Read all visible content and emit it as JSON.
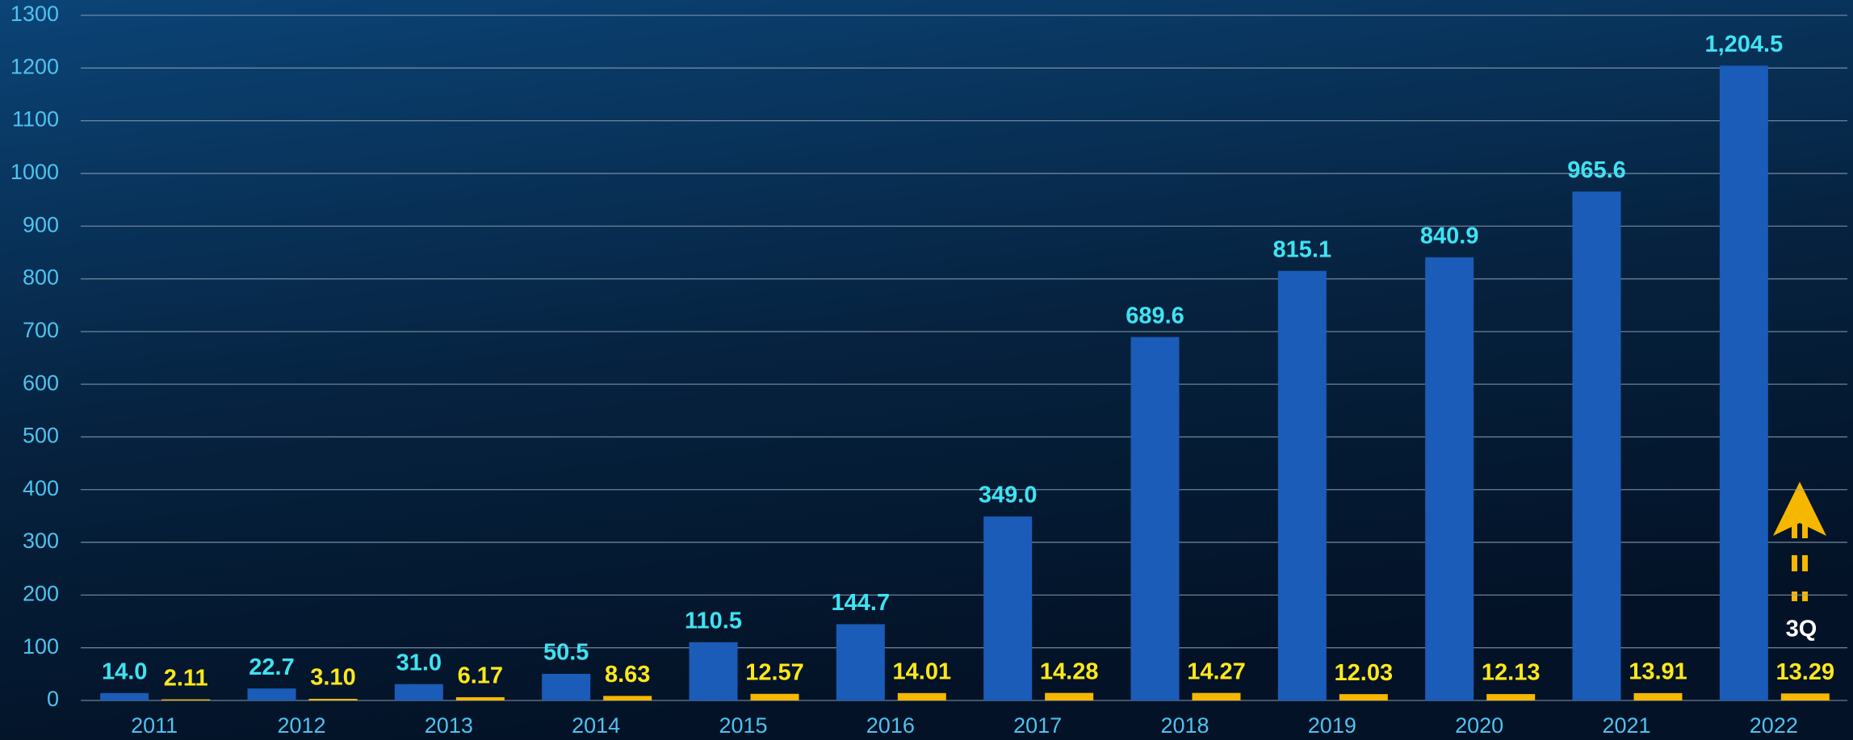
{
  "chart_data": {
    "type": "bar",
    "categories": [
      "2011",
      "2012",
      "2013",
      "2014",
      "2015",
      "2016",
      "2017",
      "2018",
      "2019",
      "2020",
      "2021",
      "2022"
    ],
    "series": [
      {
        "color": "#1a5cb8",
        "values": [
          14.0,
          22.7,
          31.0,
          50.5,
          110.5,
          144.7,
          349.0,
          689.6,
          815.1,
          840.9,
          965.6,
          1204.5
        ],
        "value_labels": [
          "14.0",
          "22.7",
          "31.0",
          "50.5",
          "110.5",
          "144.7",
          "349.0",
          "689.6",
          "815.1",
          "840.9",
          "965.6",
          "1,204.5"
        ]
      },
      {
        "color": "#f5b700",
        "values": [
          2.11,
          3.1,
          6.17,
          8.63,
          12.57,
          14.01,
          14.28,
          14.27,
          12.03,
          12.13,
          13.91,
          13.29
        ],
        "value_labels": [
          "2.11",
          "3.10",
          "6.17",
          "8.63",
          "12.57",
          "14.01",
          "14.28",
          "14.27",
          "12.03",
          "12.13",
          "13.91",
          "13.29"
        ]
      }
    ],
    "annotation": "3Q",
    "ylim": [
      0,
      1300
    ],
    "yticks": [
      0,
      100,
      200,
      300,
      400,
      500,
      600,
      700,
      800,
      900,
      1000,
      1100,
      1200,
      1300
    ],
    "grid": true
  }
}
